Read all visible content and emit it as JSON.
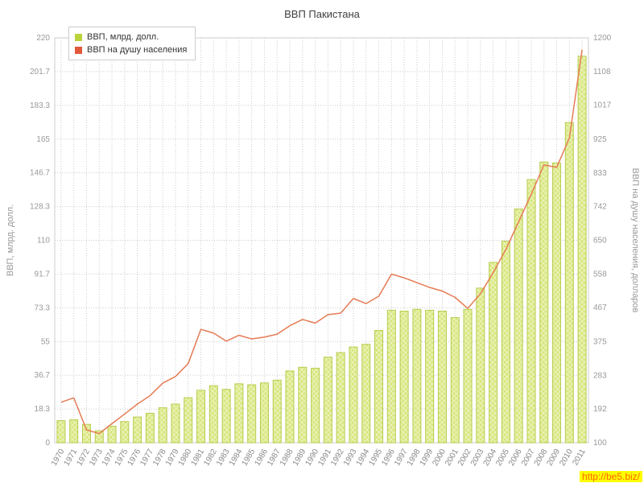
{
  "title": "ВВП Пакистана",
  "watermark": "http://be5.biz/",
  "legend": [
    {
      "label": "ВВП, млрд. долл."
    },
    {
      "label": "ВВП на душу населения"
    }
  ],
  "colors": {
    "bar_fill": "#d9e77f",
    "bar_stroke": "#b6cc4f",
    "bar_legend": "#b9d439",
    "line": "#e57c55",
    "line_legend": "#e2583a",
    "grid": "#cccccc",
    "plot_border": "#cccccc",
    "axis_text": "#999999",
    "x_text": "#888888",
    "title_text": "#404040",
    "watermark_bg": "#ffff00",
    "watermark_text": "#ff6600"
  },
  "chart_data": {
    "type": "bar",
    "title": "ВВП Пакистана",
    "grid": true,
    "legend_position": "top-left",
    "categories": [
      "1970",
      "1971",
      "1972",
      "1973",
      "1974",
      "1975",
      "1976",
      "1977",
      "1978",
      "1979",
      "1980",
      "1981",
      "1982",
      "1983",
      "1984",
      "1985",
      "1986",
      "1987",
      "1988",
      "1989",
      "1990",
      "1991",
      "1992",
      "1993",
      "1994",
      "1995",
      "1996",
      "1997",
      "1998",
      "1999",
      "2000",
      "2001",
      "2002",
      "2003",
      "2004",
      "2005",
      "2006",
      "2007",
      "2008",
      "2009",
      "2010",
      "2011"
    ],
    "series": [
      {
        "name": "ВВП, млрд. долл.",
        "type": "bar",
        "axis": "left",
        "values": [
          12,
          12.5,
          10,
          6.5,
          9,
          11.5,
          14,
          16,
          19,
          21,
          24.5,
          28.5,
          31,
          29,
          32,
          31.5,
          32.5,
          34,
          39,
          41,
          40.5,
          46.5,
          49,
          52,
          53.5,
          61,
          72,
          71.5,
          72.5,
          72,
          71.5,
          68,
          72.5,
          84,
          98,
          109.5,
          127,
          143,
          152.5,
          152,
          174,
          210
        ]
      },
      {
        "name": "ВВП на душу населения",
        "type": "line",
        "axis": "right",
        "values": [
          210,
          222,
          135,
          125,
          152,
          178,
          205,
          228,
          262,
          280,
          315,
          408,
          398,
          376,
          392,
          382,
          387,
          395,
          418,
          435,
          425,
          448,
          452,
          492,
          478,
          498,
          558,
          548,
          535,
          522,
          512,
          495,
          465,
          505,
          562,
          625,
          700,
          775,
          855,
          848,
          928,
          1168
        ]
      }
    ],
    "left_axis": {
      "label": "ВВП, млрд. долл.",
      "min": 0,
      "max": 220,
      "ticks": [
        0,
        18.3,
        36.7,
        55,
        73.3,
        91.7,
        110,
        128.3,
        146.7,
        165,
        183.3,
        201.7,
        220
      ],
      "tick_labels": [
        "0",
        "18.3",
        "36.7",
        "55",
        "73.3",
        "91.7",
        "110",
        "128.3",
        "146.7",
        "165",
        "183.3",
        "201.7",
        "220"
      ]
    },
    "right_axis": {
      "label": "ВВП на душу населения, долларов",
      "min": 100,
      "max": 1200,
      "ticks": [
        100,
        192,
        283,
        375,
        467,
        558,
        650,
        742,
        833,
        925,
        1017,
        1108,
        1200
      ],
      "tick_labels": [
        "100",
        "192",
        "283",
        "375",
        "467",
        "558",
        "650",
        "742",
        "833",
        "925",
        "1017",
        "1108",
        "1200"
      ]
    }
  }
}
